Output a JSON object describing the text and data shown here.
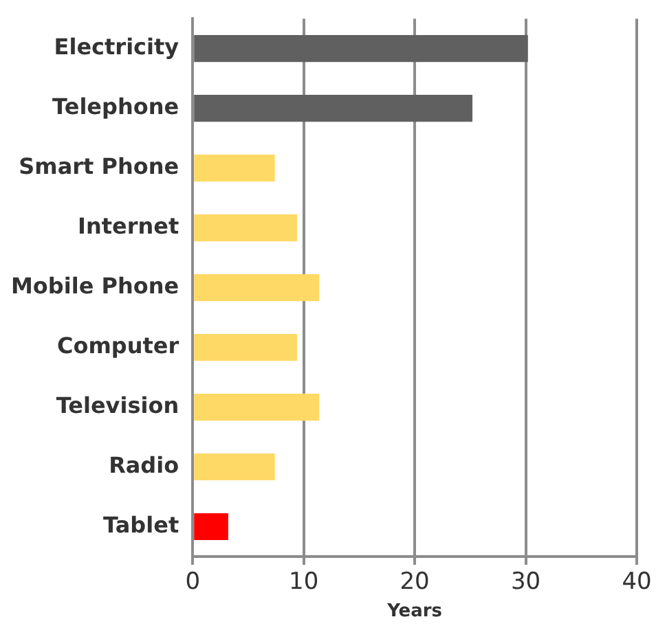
{
  "chart_data": {
    "type": "bar",
    "orientation": "horizontal",
    "xlabel": "Years",
    "categories": [
      "Electricity",
      "Telephone",
      "Smart Phone",
      "Internet",
      "Mobile Phone",
      "Computer",
      "Television",
      "Radio",
      "Tablet"
    ],
    "values": [
      30.2,
      25.2,
      7.4,
      9.4,
      11.4,
      9.4,
      11.4,
      7.4,
      3.2
    ],
    "colors": [
      "#606060",
      "#606060",
      "#ffd966",
      "#ffd966",
      "#ffd966",
      "#ffd966",
      "#ffd966",
      "#ffd966",
      "#ff0000"
    ],
    "xlim": [
      0,
      40
    ],
    "xticks": [
      0,
      10,
      20,
      30,
      40
    ],
    "grid": "x",
    "legend": false
  }
}
